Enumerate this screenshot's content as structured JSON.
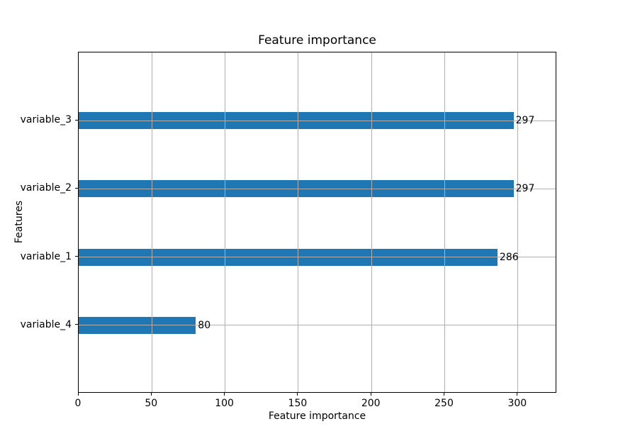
{
  "chart_data": {
    "type": "bar",
    "orientation": "horizontal",
    "title": "Feature importance",
    "xlabel": "Feature importance",
    "ylabel": "Features",
    "categories": [
      "variable_3",
      "variable_2",
      "variable_1",
      "variable_4"
    ],
    "values": [
      297,
      297,
      286,
      80
    ],
    "value_labels": [
      "297",
      "297",
      "286",
      "80"
    ],
    "xticks": [
      0,
      50,
      100,
      150,
      200,
      250,
      300
    ],
    "xtick_labels": [
      "0",
      "50",
      "100",
      "150",
      "200",
      "250",
      "300"
    ],
    "xlim": [
      0,
      326.7
    ],
    "y_units_total": 5,
    "bar_height_units": 0.25,
    "grid": true,
    "legend": false,
    "bar_color": "#1f77b4",
    "grid_color": "#b0b0b0",
    "spine_color": "#000000",
    "background_color": "#ffffff"
  }
}
